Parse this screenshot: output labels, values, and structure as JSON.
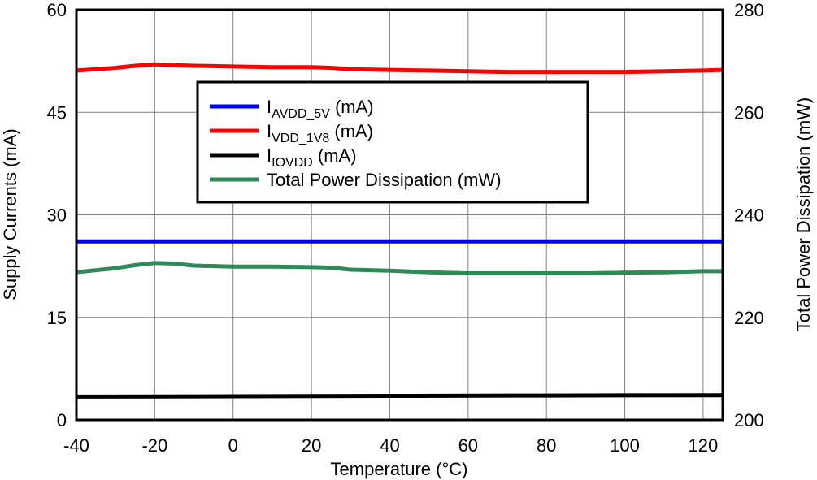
{
  "chart_data": {
    "type": "line",
    "xlabel": "Temperature (°C)",
    "ylabel": "Supply Currents (mA)",
    "y2label": "Total Power Dissipation (mW)",
    "xlim": [
      -40,
      125
    ],
    "ylim": [
      0,
      60
    ],
    "y2lim": [
      200,
      280
    ],
    "grid": true,
    "legend_position": "center-left",
    "xticks": [
      "-40",
      "-20",
      "0",
      "20",
      "40",
      "60",
      "80",
      "100",
      "120"
    ],
    "xtick_values": [
      -40,
      -20,
      0,
      20,
      40,
      60,
      80,
      100,
      120
    ],
    "yticks": [
      "0",
      "15",
      "30",
      "45",
      "60"
    ],
    "ytick_values": [
      0,
      15,
      30,
      45,
      60
    ],
    "y2ticks": [
      "200",
      "220",
      "240",
      "260",
      "280"
    ],
    "y2tick_values": [
      200,
      220,
      240,
      260,
      280
    ],
    "series": [
      {
        "name": "IAVDD_5V (mA)",
        "name_main": "I",
        "name_sub": "AVDD_5V",
        "name_suffix": " (mA)",
        "axis": "left",
        "color": "#0000ff",
        "x": [
          -40,
          -20,
          0,
          20,
          40,
          60,
          80,
          100,
          125
        ],
        "y": [
          26.1,
          26.1,
          26.1,
          26.1,
          26.1,
          26.1,
          26.1,
          26.1,
          26.1
        ]
      },
      {
        "name": "IVDD_1V8 (mA)",
        "name_main": "I",
        "name_sub": "VDD_1V8",
        "name_suffix": " (mA)",
        "axis": "left",
        "color": "#ff0000",
        "x": [
          -40,
          -30,
          -25,
          -20,
          -15,
          -10,
          0,
          10,
          20,
          25,
          30,
          40,
          50,
          60,
          70,
          80,
          90,
          100,
          110,
          120,
          125
        ],
        "y": [
          51.1,
          51.5,
          51.8,
          52.0,
          51.9,
          51.8,
          51.7,
          51.6,
          51.6,
          51.5,
          51.3,
          51.2,
          51.1,
          51.0,
          50.9,
          50.9,
          50.9,
          50.9,
          51.0,
          51.1,
          51.2
        ]
      },
      {
        "name": "IIOVDD (mA)",
        "name_main": "I",
        "name_sub": "IOVDD",
        "name_suffix": " (mA)",
        "axis": "left",
        "color": "#000000",
        "x": [
          -40,
          0,
          40,
          80,
          125
        ],
        "y": [
          3.4,
          3.45,
          3.5,
          3.55,
          3.6
        ]
      },
      {
        "name": "Total Power Dissipation (mW)",
        "name_main": "Total Power Dissipation (mW)",
        "name_sub": "",
        "name_suffix": "",
        "axis": "right",
        "color": "#2e8b57",
        "x": [
          -40,
          -30,
          -25,
          -20,
          -15,
          -10,
          0,
          10,
          20,
          25,
          30,
          40,
          50,
          60,
          70,
          80,
          90,
          100,
          110,
          120,
          125
        ],
        "y": [
          228.8,
          229.6,
          230.2,
          230.6,
          230.5,
          230.1,
          229.9,
          229.9,
          229.8,
          229.7,
          229.3,
          229.1,
          228.8,
          228.6,
          228.6,
          228.6,
          228.6,
          228.7,
          228.8,
          229.0,
          229.0
        ]
      }
    ]
  }
}
